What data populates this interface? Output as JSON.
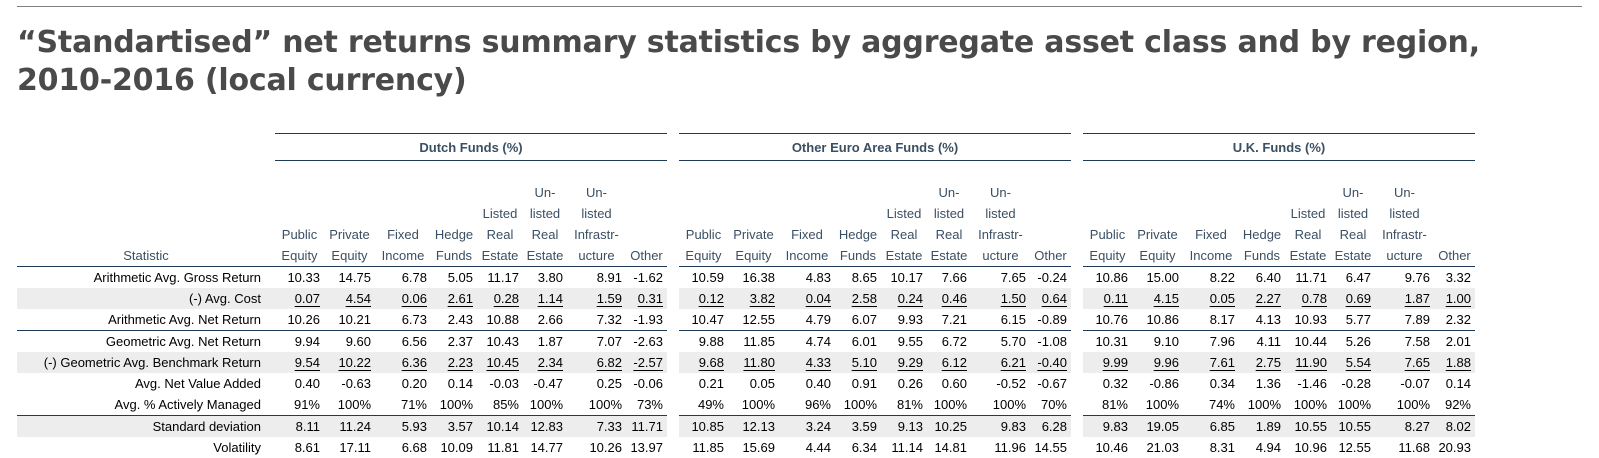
{
  "title": "“Standartised” net returns summary statistics by aggregate asset class and by region, 2010-2016 (local currency)",
  "stat_header": "Statistic",
  "groups": [
    "Dutch Funds (%)",
    "Other Euro Area Funds (%)",
    "U.K. Funds (%)"
  ],
  "columns": [
    [
      "Public",
      "Equity"
    ],
    [
      "Private",
      "Equity"
    ],
    [
      "Fixed",
      "Income"
    ],
    [
      "Hedge",
      "Funds"
    ],
    [
      "Listed",
      "Real",
      "Estate"
    ],
    [
      "Un-",
      "listed",
      "Real",
      "Estate"
    ],
    [
      "Un-",
      "listed",
      "Infrastr-",
      "ucture"
    ],
    [
      "Other"
    ]
  ],
  "rows": [
    {
      "label": "Arithmetic Avg. Gross Return",
      "values": [
        "10.33",
        "14.75",
        "6.78",
        "5.05",
        "11.17",
        "3.80",
        "8.91",
        "-1.62",
        "10.59",
        "16.38",
        "4.83",
        "8.65",
        "10.17",
        "7.66",
        "7.65",
        "-0.24",
        "10.86",
        "15.00",
        "8.22",
        "6.40",
        "11.71",
        "6.47",
        "9.76",
        "3.32"
      ]
    },
    {
      "label": "(-) Avg. Cost",
      "values": [
        "0.07",
        "4.54",
        "0.06",
        "2.61",
        "0.28",
        "1.14",
        "1.59",
        "0.31",
        "0.12",
        "3.82",
        "0.04",
        "2.58",
        "0.24",
        "0.46",
        "1.50",
        "0.64",
        "0.11",
        "4.15",
        "0.05",
        "2.27",
        "0.78",
        "0.69",
        "1.87",
        "1.00"
      ]
    },
    {
      "label": "Arithmetic Avg. Net Return",
      "values": [
        "10.26",
        "10.21",
        "6.73",
        "2.43",
        "10.88",
        "2.66",
        "7.32",
        "-1.93",
        "10.47",
        "12.55",
        "4.79",
        "6.07",
        "9.93",
        "7.21",
        "6.15",
        "-0.89",
        "10.76",
        "10.86",
        "8.17",
        "4.13",
        "10.93",
        "5.77",
        "7.89",
        "2.32"
      ]
    },
    {
      "label": "Geometric Avg. Net Return",
      "values": [
        "9.94",
        "9.60",
        "6.56",
        "2.37",
        "10.43",
        "1.87",
        "7.07",
        "-2.63",
        "9.88",
        "11.85",
        "4.74",
        "6.01",
        "9.55",
        "6.72",
        "5.70",
        "-1.08",
        "10.31",
        "9.10",
        "7.96",
        "4.11",
        "10.44",
        "5.26",
        "7.58",
        "2.01"
      ]
    },
    {
      "label": "(-) Geometric Avg. Benchmark Return",
      "values": [
        "9.54",
        "10.22",
        "6.36",
        "2.23",
        "10.45",
        "2.34",
        "6.82",
        "-2.57",
        "9.68",
        "11.80",
        "4.33",
        "5.10",
        "9.29",
        "6.12",
        "6.21",
        "-0.40",
        "9.99",
        "9.96",
        "7.61",
        "2.75",
        "11.90",
        "5.54",
        "7.65",
        "1.88"
      ]
    },
    {
      "label": "Avg. Net Value Added",
      "values": [
        "0.40",
        "-0.63",
        "0.20",
        "0.14",
        "-0.03",
        "-0.47",
        "0.25",
        "-0.06",
        "0.21",
        "0.05",
        "0.40",
        "0.91",
        "0.26",
        "0.60",
        "-0.52",
        "-0.67",
        "0.32",
        "-0.86",
        "0.34",
        "1.36",
        "-1.46",
        "-0.28",
        "-0.07",
        "0.14"
      ]
    },
    {
      "label": "Avg. % Actively Managed",
      "values": [
        "91%",
        "100%",
        "71%",
        "100%",
        "85%",
        "100%",
        "100%",
        "73%",
        "49%",
        "100%",
        "96%",
        "100%",
        "81%",
        "100%",
        "100%",
        "70%",
        "81%",
        "100%",
        "74%",
        "100%",
        "100%",
        "100%",
        "100%",
        "92%"
      ]
    },
    {
      "label": "Standard deviation",
      "values": [
        "8.11",
        "11.24",
        "5.93",
        "3.57",
        "10.14",
        "12.83",
        "7.33",
        "11.71",
        "10.85",
        "12.13",
        "3.24",
        "3.59",
        "9.13",
        "10.25",
        "9.83",
        "6.28",
        "9.83",
        "19.05",
        "6.85",
        "1.89",
        "10.55",
        "10.55",
        "8.27",
        "8.02"
      ]
    },
    {
      "label": "Volatility",
      "values": [
        "8.61",
        "17.11",
        "6.68",
        "10.09",
        "11.81",
        "14.77",
        "10.26",
        "13.97",
        "11.85",
        "15.69",
        "4.44",
        "6.34",
        "11.14",
        "14.81",
        "11.96",
        "14.55",
        "10.46",
        "21.03",
        "8.31",
        "4.94",
        "10.96",
        "12.55",
        "11.68",
        "20.93"
      ]
    }
  ]
}
